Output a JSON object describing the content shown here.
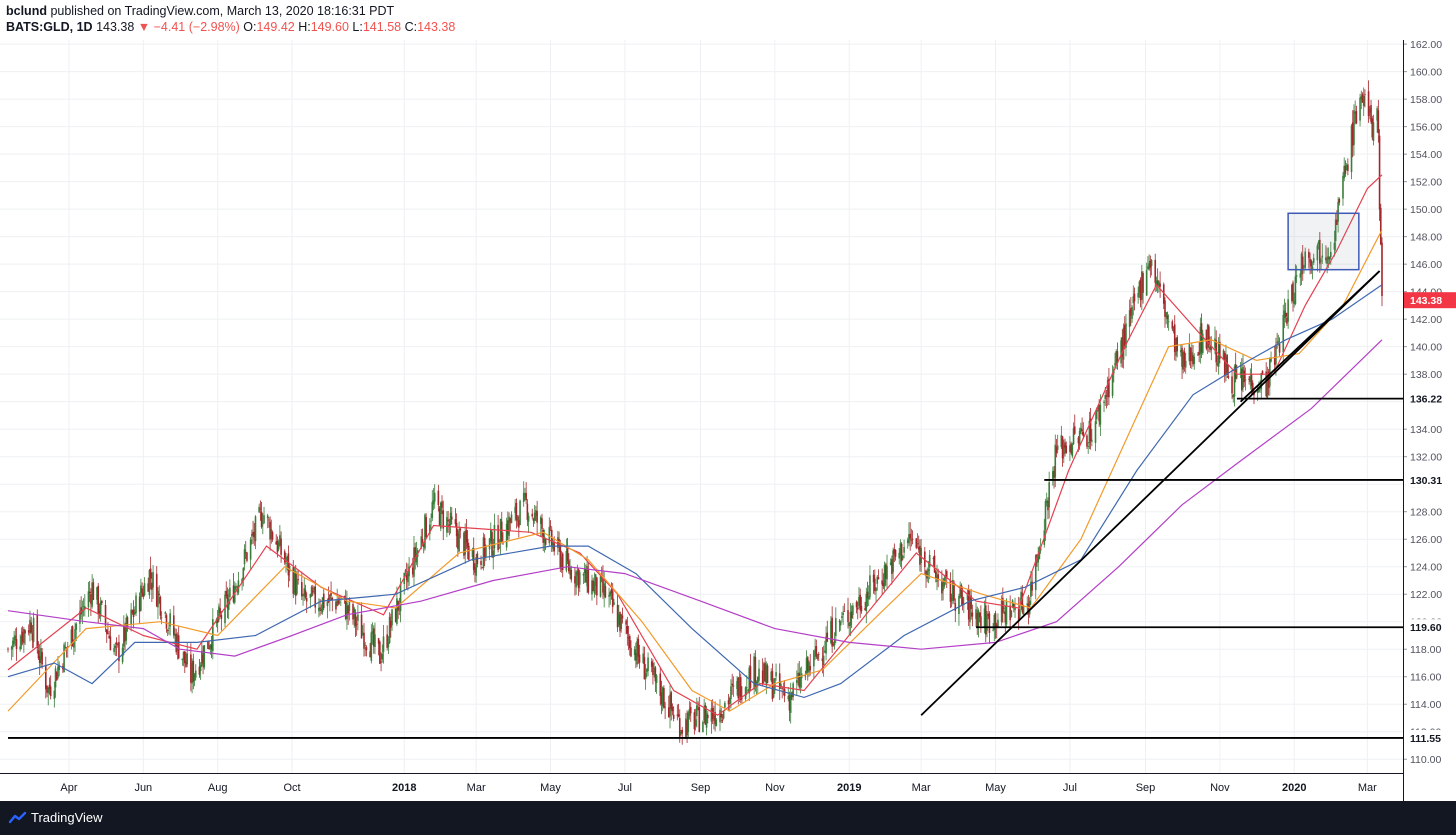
{
  "header": {
    "author": "bclund",
    "published": "published on TradingView.com, March 13, 2020 18:16:31 PDT",
    "symbol": "BATS:GLD, 1D",
    "last": "143.38",
    "change": "−4.41 (−2.98%)",
    "open_label": "O:",
    "open": "149.42",
    "high_label": "H:",
    "high": "149.60",
    "low_label": "L:",
    "low": "141.58",
    "close_label": "C:",
    "close": "143.38"
  },
  "footer": {
    "brand": "TradingView",
    "logo_icon": "tradingview-logo-icon"
  },
  "colors": {
    "up": "#3a7d3a",
    "down": "#a3262a",
    "ma_fast": "#e5404f",
    "ma_mid": "#f39a2a",
    "ma_slow": "#3f68b0",
    "ma_long": "#b43fc7",
    "price_badge": "#f23645",
    "line": "#000000"
  },
  "chart_data": {
    "type": "candlestick",
    "symbol": "BATS:GLD",
    "interval": "1D",
    "x_start": "2017-02-10",
    "x_end": "2020-03-13",
    "ylim": [
      109.0,
      162.3
    ],
    "y_ticks": [
      "110.00",
      "112.00",
      "114.00",
      "116.00",
      "118.00",
      "120.00",
      "122.00",
      "124.00",
      "126.00",
      "128.00",
      "130.00",
      "132.00",
      "134.00",
      "136.00",
      "138.00",
      "140.00",
      "142.00",
      "144.00",
      "146.00",
      "148.00",
      "150.00",
      "152.00",
      "154.00",
      "156.00",
      "158.00",
      "160.00",
      "162.00"
    ],
    "x_ticks": [
      {
        "label": "Apr",
        "date": "2017-04-01",
        "bold": false
      },
      {
        "label": "Jun",
        "date": "2017-06-01",
        "bold": false
      },
      {
        "label": "Aug",
        "date": "2017-08-01",
        "bold": false
      },
      {
        "label": "Oct",
        "date": "2017-10-01",
        "bold": false
      },
      {
        "label": "2018",
        "date": "2018-01-01",
        "bold": true
      },
      {
        "label": "Mar",
        "date": "2018-03-01",
        "bold": false
      },
      {
        "label": "May",
        "date": "2018-05-01",
        "bold": false
      },
      {
        "label": "Jul",
        "date": "2018-07-01",
        "bold": false
      },
      {
        "label": "Sep",
        "date": "2018-09-01",
        "bold": false
      },
      {
        "label": "Nov",
        "date": "2018-11-01",
        "bold": false
      },
      {
        "label": "2019",
        "date": "2019-01-01",
        "bold": true
      },
      {
        "label": "Mar",
        "date": "2019-03-01",
        "bold": false
      },
      {
        "label": "May",
        "date": "2019-05-01",
        "bold": false
      },
      {
        "label": "Jul",
        "date": "2019-07-01",
        "bold": false
      },
      {
        "label": "Sep",
        "date": "2019-09-01",
        "bold": false
      },
      {
        "label": "Nov",
        "date": "2019-11-01",
        "bold": false
      },
      {
        "label": "2020",
        "date": "2020-01-01",
        "bold": true
      },
      {
        "label": "Mar",
        "date": "2020-03-01",
        "bold": false
      }
    ],
    "grid": true,
    "price": [
      [
        "2017-02-10",
        118.0
      ],
      [
        "2017-03-01",
        120.0
      ],
      [
        "2017-03-15",
        115.0
      ],
      [
        "2017-04-20",
        122.5
      ],
      [
        "2017-05-10",
        117.5
      ],
      [
        "2017-06-06",
        123.5
      ],
      [
        "2017-07-10",
        116.0
      ],
      [
        "2017-08-10",
        121.5
      ],
      [
        "2017-09-07",
        128.0
      ],
      [
        "2017-10-10",
        121.5
      ],
      [
        "2017-11-10",
        121.5
      ],
      [
        "2017-12-12",
        117.5
      ],
      [
        "2018-01-25",
        128.5
      ],
      [
        "2018-03-01",
        124.5
      ],
      [
        "2018-04-11",
        128.5
      ],
      [
        "2018-05-15",
        124.0
      ],
      [
        "2018-06-15",
        122.0
      ],
      [
        "2018-07-15",
        117.0
      ],
      [
        "2018-08-16",
        112.5
      ],
      [
        "2018-09-15",
        113.5
      ],
      [
        "2018-10-15",
        116.5
      ],
      [
        "2018-11-13",
        114.5
      ],
      [
        "2018-12-20",
        119.5
      ],
      [
        "2019-01-20",
        122.5
      ],
      [
        "2019-02-20",
        126.0
      ],
      [
        "2019-03-20",
        122.5
      ],
      [
        "2019-04-23",
        120.0
      ],
      [
        "2019-05-28",
        121.5
      ],
      [
        "2019-06-20",
        132.5
      ],
      [
        "2019-07-20",
        134.0
      ],
      [
        "2019-08-20",
        142.0
      ],
      [
        "2019-09-04",
        146.5
      ],
      [
        "2019-10-01",
        138.5
      ],
      [
        "2019-10-20",
        141.0
      ],
      [
        "2019-11-12",
        137.5
      ],
      [
        "2019-12-10",
        137.5
      ],
      [
        "2020-01-08",
        146.5
      ],
      [
        "2020-02-01",
        147.5
      ],
      [
        "2020-02-24",
        158.5
      ],
      [
        "2020-03-05",
        156.0
      ],
      [
        "2020-03-09",
        158.0
      ],
      [
        "2020-03-12",
        147.5
      ],
      [
        "2020-03-13",
        143.38
      ]
    ],
    "moving_averages": [
      {
        "color": "#e5404f",
        "points": [
          [
            "2017-02-10",
            116.5
          ],
          [
            "2017-04-15",
            121.0
          ],
          [
            "2017-06-01",
            119.0
          ],
          [
            "2017-07-15",
            118.0
          ],
          [
            "2017-09-10",
            125.5
          ],
          [
            "2017-10-25",
            122.5
          ],
          [
            "2017-12-15",
            120.5
          ],
          [
            "2018-01-25",
            127.0
          ],
          [
            "2018-04-15",
            126.5
          ],
          [
            "2018-05-25",
            125.0
          ],
          [
            "2018-06-25",
            122.0
          ],
          [
            "2018-08-10",
            115.0
          ],
          [
            "2018-09-15",
            113.2
          ],
          [
            "2018-10-20",
            115.5
          ],
          [
            "2018-11-25",
            115.0
          ],
          [
            "2019-01-10",
            120.0
          ],
          [
            "2019-02-25",
            125.0
          ],
          [
            "2019-04-15",
            121.5
          ],
          [
            "2019-05-20",
            121.0
          ],
          [
            "2019-06-30",
            131.0
          ],
          [
            "2019-08-15",
            140.0
          ],
          [
            "2019-09-10",
            144.5
          ],
          [
            "2019-10-15",
            141.0
          ],
          [
            "2019-11-15",
            138.0
          ],
          [
            "2019-12-15",
            138.0
          ],
          [
            "2020-01-10",
            143.0
          ],
          [
            "2020-02-05",
            147.0
          ],
          [
            "2020-03-01",
            151.5
          ],
          [
            "2020-03-13",
            152.5
          ]
        ]
      },
      {
        "color": "#f39a2a",
        "points": [
          [
            "2017-02-10",
            113.5
          ],
          [
            "2017-04-15",
            119.5
          ],
          [
            "2017-06-15",
            120.0
          ],
          [
            "2017-08-01",
            119.0
          ],
          [
            "2017-09-25",
            124.0
          ],
          [
            "2017-11-15",
            121.5
          ],
          [
            "2017-12-25",
            121.0
          ],
          [
            "2018-02-15",
            125.0
          ],
          [
            "2018-04-25",
            126.5
          ],
          [
            "2018-06-01",
            124.5
          ],
          [
            "2018-07-15",
            120.0
          ],
          [
            "2018-08-25",
            115.0
          ],
          [
            "2018-09-25",
            113.5
          ],
          [
            "2018-11-01",
            115.5
          ],
          [
            "2018-12-10",
            116.5
          ],
          [
            "2019-01-25",
            120.5
          ],
          [
            "2019-03-01",
            123.5
          ],
          [
            "2019-04-20",
            122.0
          ],
          [
            "2019-05-30",
            121.0
          ],
          [
            "2019-07-10",
            126.0
          ],
          [
            "2019-08-20",
            134.0
          ],
          [
            "2019-09-20",
            140.0
          ],
          [
            "2019-10-25",
            140.5
          ],
          [
            "2019-12-01",
            139.0
          ],
          [
            "2020-01-05",
            139.5
          ],
          [
            "2020-02-10",
            143.0
          ],
          [
            "2020-03-13",
            148.5
          ]
        ]
      },
      {
        "color": "#3f68b0",
        "points": [
          [
            "2017-02-10",
            116.0
          ],
          [
            "2017-03-20",
            117.0
          ],
          [
            "2017-04-20",
            115.5
          ],
          [
            "2017-05-25",
            118.5
          ],
          [
            "2017-07-15",
            118.5
          ],
          [
            "2017-09-01",
            119.0
          ],
          [
            "2017-10-25",
            121.5
          ],
          [
            "2017-12-25",
            122.0
          ],
          [
            "2018-02-25",
            124.5
          ],
          [
            "2018-05-01",
            125.5
          ],
          [
            "2018-06-01",
            125.5
          ],
          [
            "2018-07-10",
            123.5
          ],
          [
            "2018-08-25",
            119.5
          ],
          [
            "2018-10-15",
            115.5
          ],
          [
            "2018-11-25",
            114.5
          ],
          [
            "2018-12-25",
            115.5
          ],
          [
            "2019-02-15",
            119.0
          ],
          [
            "2019-04-10",
            121.5
          ],
          [
            "2019-05-25",
            122.5
          ],
          [
            "2019-07-10",
            124.5
          ],
          [
            "2019-08-25",
            131.0
          ],
          [
            "2019-10-10",
            136.5
          ],
          [
            "2019-11-25",
            139.0
          ],
          [
            "2019-12-25",
            140.5
          ],
          [
            "2020-02-01",
            142.0
          ],
          [
            "2020-03-13",
            144.5
          ]
        ]
      },
      {
        "color": "#b43fc7",
        "points": [
          [
            "2017-02-10",
            120.8
          ],
          [
            "2017-04-15",
            120.0
          ],
          [
            "2017-06-01",
            119.5
          ],
          [
            "2017-07-01",
            118.0
          ],
          [
            "2017-08-15",
            117.5
          ],
          [
            "2017-10-01",
            119.0
          ],
          [
            "2017-11-15",
            120.5
          ],
          [
            "2018-01-15",
            121.5
          ],
          [
            "2018-03-15",
            123.0
          ],
          [
            "2018-05-15",
            124.0
          ],
          [
            "2018-07-01",
            123.5
          ],
          [
            "2018-09-01",
            121.5
          ],
          [
            "2018-11-01",
            119.5
          ],
          [
            "2019-01-01",
            118.5
          ],
          [
            "2019-03-01",
            118.0
          ],
          [
            "2019-05-01",
            118.5
          ],
          [
            "2019-06-20",
            120.0
          ],
          [
            "2019-08-10",
            124.0
          ],
          [
            "2019-10-01",
            128.5
          ],
          [
            "2019-11-15",
            131.5
          ],
          [
            "2020-01-15",
            135.5
          ],
          [
            "2020-03-13",
            140.5
          ]
        ]
      }
    ],
    "horizontal_levels": [
      {
        "value": 136.22,
        "label": "136.22",
        "from": "2019-11-15"
      },
      {
        "value": 130.31,
        "label": "130.31",
        "from": "2019-06-10"
      },
      {
        "value": 119.6,
        "label": "119.60",
        "from": "2019-04-15"
      },
      {
        "value": 111.55,
        "label": "111.55",
        "from": "2017-02-10"
      }
    ],
    "trendlines": [
      {
        "from": [
          "2019-03-01",
          113.2
        ],
        "to": [
          "2020-03-11",
          145.5
        ]
      },
      {
        "from": [
          "2019-11-18",
          136.0
        ],
        "to": [
          "2020-03-11",
          145.5
        ]
      }
    ],
    "consolidation_box": {
      "from": "2019-12-27",
      "to": "2020-02-23",
      "low": 145.6,
      "high": 149.7
    },
    "last_price_badge": "143.38"
  }
}
